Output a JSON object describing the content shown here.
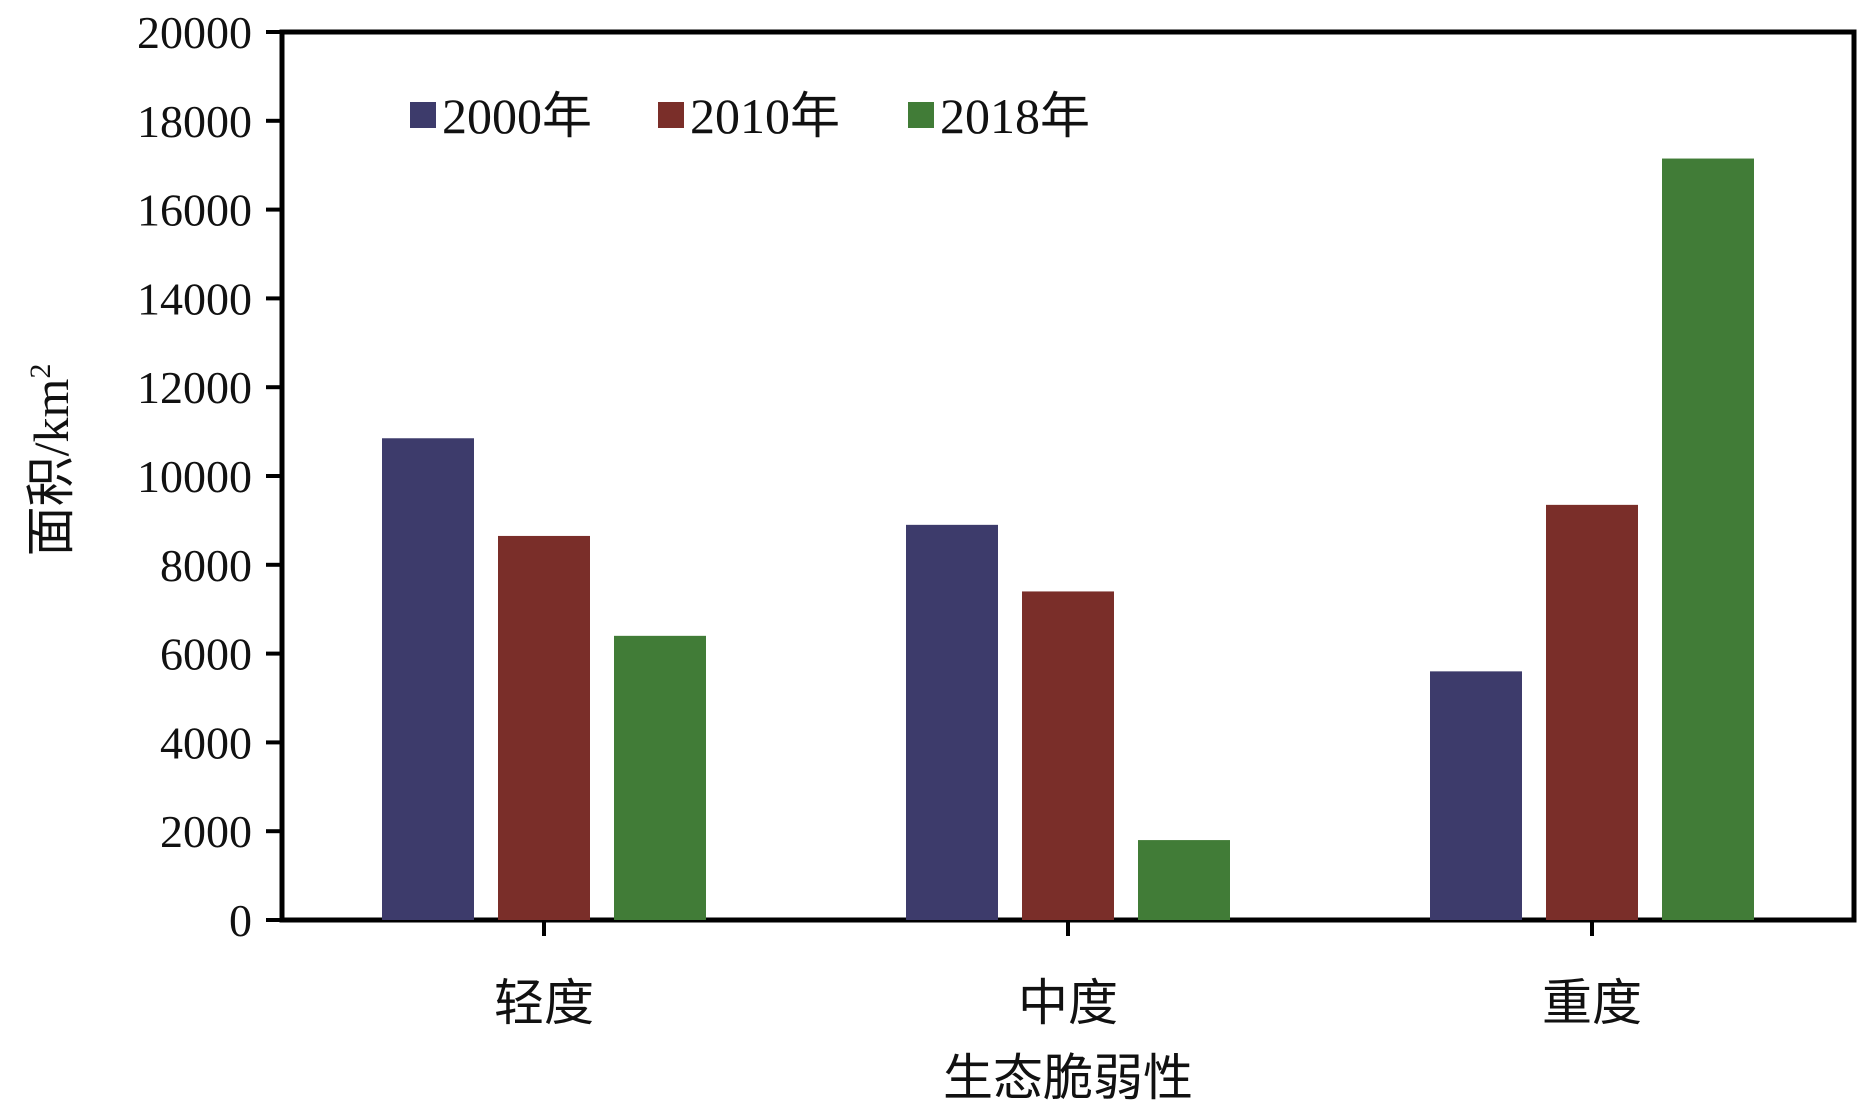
{
  "chart_data": {
    "type": "bar",
    "title": "",
    "xlabel": "生态脆弱性",
    "ylabel_main": "面积/km",
    "ylabel_sup": "2",
    "categories": [
      "轻度",
      "中度",
      "重度"
    ],
    "series": [
      {
        "name": "2000年",
        "color": "#3d3b6b",
        "values": [
          10850,
          8900,
          5600
        ]
      },
      {
        "name": "2010年",
        "color": "#7a2e29",
        "values": [
          8650,
          7400,
          9350
        ]
      },
      {
        "name": "2018年",
        "color": "#417c37",
        "values": [
          6400,
          1800,
          17150
        ]
      }
    ],
    "yticks": [
      "0",
      "2000",
      "4000",
      "6000",
      "8000",
      "10000",
      "12000",
      "14000",
      "16000",
      "18000",
      "20000"
    ],
    "ylim": [
      0,
      20000
    ],
    "grid": false,
    "legend_position": "top-left"
  }
}
